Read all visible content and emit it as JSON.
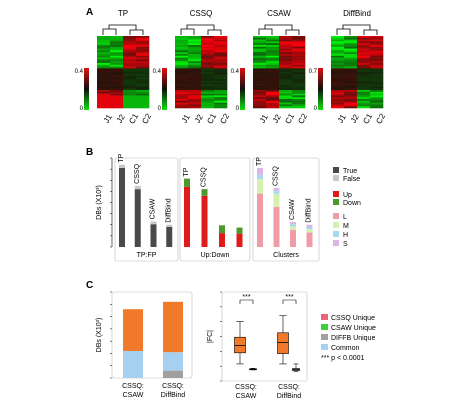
{
  "panel_a": {
    "label": "A",
    "heatmaps": [
      {
        "title": "TP",
        "scale_max": "0.4",
        "scale_min": "0",
        "cols": [
          "J1",
          "J2",
          "C1",
          "C2"
        ]
      },
      {
        "title": "CSSQ",
        "scale_max": "0.4",
        "scale_min": "0",
        "cols": [
          "J1",
          "J2",
          "C1",
          "C2"
        ]
      },
      {
        "title": "CSAW",
        "scale_max": "0.4",
        "scale_min": "0",
        "cols": [
          "J1",
          "J2",
          "C1",
          "C2"
        ]
      },
      {
        "title": "DiffBind",
        "scale_max": "0.7",
        "scale_min": "0",
        "cols": [
          "J1",
          "J2",
          "C1",
          "C2"
        ]
      }
    ]
  },
  "panel_b": {
    "label": "B",
    "ylabel": "DBs (X10³)",
    "yticks": [
      "0",
      "0.2",
      "0.4",
      "0.6",
      "0.8",
      "1",
      "1.2",
      "1.4",
      "1.6"
    ],
    "groups": [
      {
        "name": "TP:FP",
        "bars": [
          {
            "label": "TP",
            "values": [
              1.42,
              0.06
            ]
          },
          {
            "label": "CSSQ",
            "values": [
              1.04,
              0.06
            ]
          },
          {
            "label": "CSAW",
            "values": [
              0.41,
              0.05
            ]
          },
          {
            "label": "DiffBind",
            "values": [
              0.36,
              0.04
            ]
          }
        ]
      },
      {
        "name": "Up:Down",
        "bars": [
          {
            "label": "TP",
            "values": [
              1.08,
              0.15
            ]
          },
          {
            "label": "CSSQ",
            "values": [
              0.92,
              0.12
            ]
          },
          {
            "label": "",
            "values": [
              0.25,
              0.14
            ]
          },
          {
            "label": "",
            "values": [
              0.24,
              0.11
            ]
          }
        ]
      },
      {
        "name": "Clusters",
        "bars": [
          {
            "label": "TP",
            "values": [
              0.96,
              0.26,
              0.08,
              0.12
            ]
          },
          {
            "label": "CSSQ",
            "values": [
              0.72,
              0.24,
              0.05,
              0.05
            ]
          },
          {
            "label": "CSAW",
            "values": [
              0.31,
              0.06,
              0.04,
              0.04
            ]
          },
          {
            "label": "DiffBind",
            "values": [
              0.26,
              0.06,
              0.04,
              0.04
            ]
          }
        ]
      }
    ],
    "legend": [
      {
        "label": "True",
        "color": "#4a4a4a"
      },
      {
        "label": "False",
        "color": "#c8c8c8"
      },
      {
        "label": "Up",
        "color": "#e11a1a"
      },
      {
        "label": "Down",
        "color": "#4c9a2a"
      },
      {
        "label": "L",
        "color": "#f19aa8"
      },
      {
        "label": "M",
        "color": "#d6f0b0"
      },
      {
        "label": "H",
        "color": "#a6d8f0"
      },
      {
        "label": "S",
        "color": "#dcb4e6"
      }
    ]
  },
  "panel_c": {
    "label": "C",
    "bar": {
      "ylabel": "DBs (X10³)",
      "yticks": [
        "0",
        "0.2",
        "0.4",
        "0.6",
        "0.8",
        "1",
        "1.2",
        "1.4"
      ],
      "bars": [
        {
          "label_line1": "CSSQ:",
          "label_line2": "CSAW",
          "common": 0.44,
          "unique": 0.68
        },
        {
          "label_line1": "CSSQ:",
          "label_line2": "DiffBind",
          "common": 0.42,
          "unique": 0.82,
          "diffb": 0.12
        }
      ]
    },
    "box": {
      "ylabel": "|FC|",
      "yticks": [
        "0",
        "2",
        "4",
        "6",
        "8",
        "10",
        "12"
      ],
      "sig": [
        "***",
        "***"
      ],
      "groups": [
        {
          "label_line1": "CSSQ:",
          "label_line2": "CSAW",
          "orange": {
            "min": 2.3,
            "q1": 3.8,
            "median": 4.8,
            "q3": 5.9,
            "max": 8.0
          },
          "small": {
            "min": 1.5,
            "q1": 1.55,
            "median": 1.6,
            "q3": 1.65,
            "max": 1.7
          }
        },
        {
          "label_line1": "CSSQ:",
          "label_line2": "DiffBind",
          "orange": {
            "min": 2.3,
            "q1": 3.7,
            "median": 5.2,
            "q3": 6.5,
            "max": 8.8
          },
          "small": {
            "min": 1.3,
            "q1": 1.4,
            "median": 1.55,
            "q3": 1.7,
            "max": 2.3
          }
        }
      ]
    },
    "legend": [
      {
        "label": "CSSQ Unique",
        "color": "#f0607a"
      },
      {
        "label": "CSAW Unique",
        "color": "#3ad23a"
      },
      {
        "label": "DIFFB Unique",
        "color": "#a0a0a0"
      },
      {
        "label": "Common",
        "color": "#a6d0f0"
      }
    ],
    "pvalue_note": "*** p < 0.0001"
  },
  "colors": {
    "orange": "#f07a2a",
    "red": "#e11a1a",
    "green": "#3aa52a",
    "black": "#000000"
  }
}
